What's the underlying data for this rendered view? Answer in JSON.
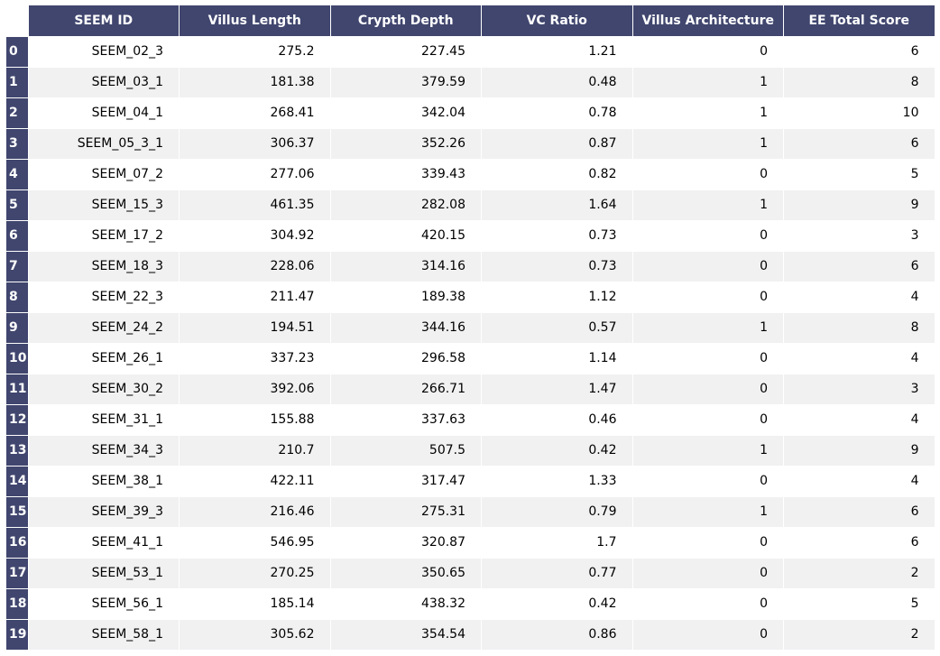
{
  "chart_data": {
    "type": "table",
    "columns": [
      "SEEM ID",
      "Villus Length",
      "Crypth Depth",
      "VC Ratio",
      "Villus Architecture",
      "EE Total Score"
    ],
    "index": [
      "0",
      "1",
      "2",
      "3",
      "4",
      "5",
      "6",
      "7",
      "8",
      "9",
      "10",
      "11",
      "12",
      "13",
      "14",
      "15",
      "16",
      "17",
      "18",
      "19"
    ],
    "rows": [
      [
        "SEEM_02_3",
        "275.2",
        "227.45",
        "1.21",
        "0",
        "6"
      ],
      [
        "SEEM_03_1",
        "181.38",
        "379.59",
        "0.48",
        "1",
        "8"
      ],
      [
        "SEEM_04_1",
        "268.41",
        "342.04",
        "0.78",
        "1",
        "10"
      ],
      [
        "SEEM_05_3_1",
        "306.37",
        "352.26",
        "0.87",
        "1",
        "6"
      ],
      [
        "SEEM_07_2",
        "277.06",
        "339.43",
        "0.82",
        "0",
        "5"
      ],
      [
        "SEEM_15_3",
        "461.35",
        "282.08",
        "1.64",
        "1",
        "9"
      ],
      [
        "SEEM_17_2",
        "304.92",
        "420.15",
        "0.73",
        "0",
        "3"
      ],
      [
        "SEEM_18_3",
        "228.06",
        "314.16",
        "0.73",
        "0",
        "6"
      ],
      [
        "SEEM_22_3",
        "211.47",
        "189.38",
        "1.12",
        "0",
        "4"
      ],
      [
        "SEEM_24_2",
        "194.51",
        "344.16",
        "0.57",
        "1",
        "8"
      ],
      [
        "SEEM_26_1",
        "337.23",
        "296.58",
        "1.14",
        "0",
        "4"
      ],
      [
        "SEEM_30_2",
        "392.06",
        "266.71",
        "1.47",
        "0",
        "3"
      ],
      [
        "SEEM_31_1",
        "155.88",
        "337.63",
        "0.46",
        "0",
        "4"
      ],
      [
        "SEEM_34_3",
        "210.7",
        "507.5",
        "0.42",
        "1",
        "9"
      ],
      [
        "SEEM_38_1",
        "422.11",
        "317.47",
        "1.33",
        "0",
        "4"
      ],
      [
        "SEEM_39_3",
        "216.46",
        "275.31",
        "0.79",
        "1",
        "6"
      ],
      [
        "SEEM_41_1",
        "546.95",
        "320.87",
        "1.7",
        "0",
        "6"
      ],
      [
        "SEEM_53_1",
        "270.25",
        "350.65",
        "0.77",
        "0",
        "2"
      ],
      [
        "SEEM_56_1",
        "185.14",
        "438.32",
        "0.42",
        "0",
        "5"
      ],
      [
        "SEEM_58_1",
        "305.62",
        "354.54",
        "0.86",
        "0",
        "2"
      ]
    ],
    "colors": {
      "header_bg": "#40466e",
      "header_text": "#ffffff",
      "row_stripe": "#f1f1f2",
      "row_plain": "#ffffff"
    }
  }
}
